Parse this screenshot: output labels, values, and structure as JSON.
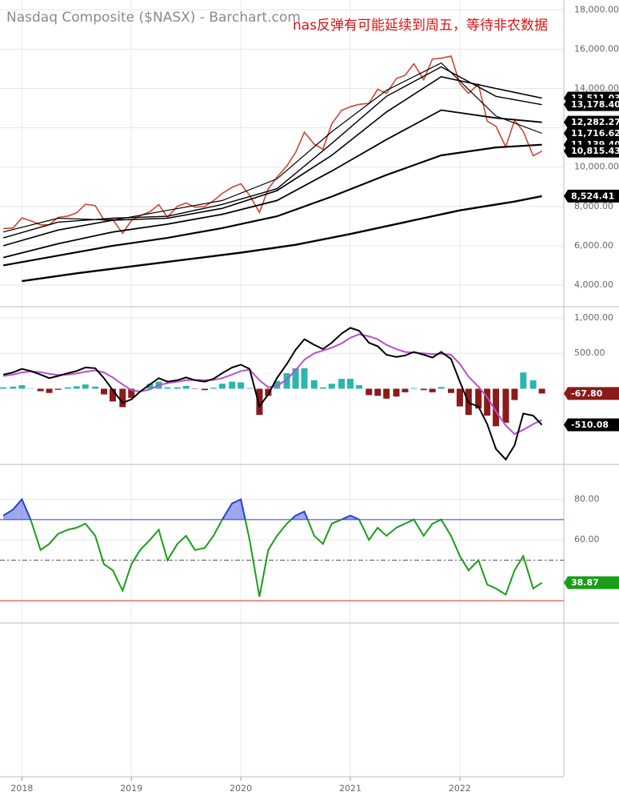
{
  "x_axis": {
    "xlim": [
      2017.8,
      2022.95
    ],
    "xticks": [
      2018,
      2019,
      2020,
      2021,
      2022
    ]
  },
  "chart_data": [
    {
      "type": "price",
      "title": "Nasdaq Composite ($NASX) - Barchart.com",
      "annotation": "nas反弹有可能延续到周五，等待非农数据",
      "ylim": [
        2900,
        18500
      ],
      "yticks": [
        {
          "value": 4000,
          "label": "4,000.00"
        },
        {
          "value": 6000,
          "label": "6,000.00"
        },
        {
          "value": 8000,
          "label": "8,000.00"
        },
        {
          "value": 10000,
          "label": "10,000.00"
        },
        {
          "value": 12000,
          "label": "12,000.00"
        },
        {
          "value": 14000,
          "label": "14,000.00"
        },
        {
          "value": 16000,
          "label": "16,000.00"
        },
        {
          "value": 18000,
          "label": "18,000.00"
        }
      ],
      "grid": true,
      "x": [
        2017.83,
        2017.92,
        2018.0,
        2018.08,
        2018.17,
        2018.25,
        2018.33,
        2018.42,
        2018.5,
        2018.58,
        2018.67,
        2018.75,
        2018.83,
        2018.92,
        2019.0,
        2019.08,
        2019.17,
        2019.25,
        2019.33,
        2019.42,
        2019.5,
        2019.58,
        2019.67,
        2019.75,
        2019.83,
        2019.92,
        2020.0,
        2020.08,
        2020.17,
        2020.25,
        2020.33,
        2020.42,
        2020.5,
        2020.58,
        2020.67,
        2020.75,
        2020.83,
        2020.92,
        2021.0,
        2021.08,
        2021.17,
        2021.25,
        2021.33,
        2021.42,
        2021.5,
        2021.58,
        2021.67,
        2021.75,
        2021.83,
        2021.92,
        2022.0,
        2022.08,
        2022.17,
        2022.25,
        2022.33,
        2022.42,
        2022.5,
        2022.58,
        2022.67,
        2022.75
      ],
      "series": [
        {
          "color": "#d2452f",
          "values": [
            6874,
            6903,
            7411,
            7273,
            7063,
            7066,
            7442,
            7510,
            7672,
            8110,
            8046,
            7306,
            7331,
            6635,
            7282,
            7533,
            7729,
            8095,
            7453,
            8006,
            8175,
            7963,
            7999,
            8292,
            8665,
            8973,
            9151,
            8567,
            7700,
            8890,
            9490,
            10059,
            10745,
            11775,
            11168,
            10912,
            12199,
            12888,
            13071,
            13192,
            13247,
            13962,
            13749,
            14504,
            14673,
            15259,
            14449,
            15498,
            15538,
            15645,
            14240,
            13751,
            14221,
            12335,
            12081,
            11029,
            12391,
            11816,
            10576,
            10815.43
          ]
        }
      ],
      "lines": [
        {
          "color": "#000000",
          "width": 2.4,
          "x": [
            2018.0,
            2018.5,
            2019.0,
            2019.5,
            2020.0,
            2020.5,
            2021.0,
            2021.5,
            2022.0,
            2022.5,
            2022.75
          ],
          "values": [
            4200,
            4600,
            4950,
            5300,
            5650,
            6050,
            6600,
            7200,
            7800,
            8250,
            8524.41
          ]
        },
        {
          "color": "#000000",
          "width": 2.2,
          "x": [
            2017.83,
            2018.33,
            2018.83,
            2019.33,
            2019.83,
            2020.33,
            2020.83,
            2021.33,
            2021.83,
            2022.33,
            2022.75
          ],
          "values": [
            5000,
            5500,
            6000,
            6400,
            6900,
            7500,
            8500,
            9600,
            10600,
            11000,
            11139.4
          ]
        },
        {
          "color": "#000000",
          "width": 1.8,
          "x": [
            2017.83,
            2018.33,
            2018.83,
            2019.33,
            2019.83,
            2020.33,
            2020.83,
            2021.33,
            2021.83,
            2022.33,
            2022.75
          ],
          "values": [
            5400,
            6100,
            6700,
            7100,
            7600,
            8300,
            9800,
            11400,
            12900,
            12500,
            12282.27
          ]
        },
        {
          "color": "#000000",
          "width": 1.6,
          "x": [
            2017.83,
            2018.33,
            2018.83,
            2019.33,
            2019.83,
            2020.33,
            2020.83,
            2021.33,
            2021.83,
            2022.33,
            2022.75
          ],
          "values": [
            6000,
            6800,
            7300,
            7400,
            7900,
            8800,
            10600,
            12800,
            14600,
            14000,
            13511.03
          ]
        },
        {
          "color": "#000000",
          "width": 1.4,
          "x": [
            2017.83,
            2018.33,
            2018.83,
            2019.33,
            2019.83,
            2020.33,
            2020.83,
            2021.33,
            2021.83,
            2022.33,
            2022.75
          ],
          "values": [
            6400,
            7200,
            7400,
            7500,
            8100,
            8900,
            11200,
            13600,
            15100,
            13600,
            13178.4
          ]
        },
        {
          "color": "#000000",
          "width": 1.2,
          "x": [
            2017.83,
            2018.33,
            2018.83,
            2019.33,
            2019.83,
            2020.33,
            2020.83,
            2021.33,
            2021.83,
            2022.33,
            2022.75
          ],
          "values": [
            6700,
            7400,
            7300,
            7800,
            8300,
            9400,
            11800,
            13900,
            15300,
            12600,
            11716.62
          ]
        }
      ],
      "axis_tags": [
        {
          "value": 13511.03,
          "label": "13,511.03",
          "color": "#000000"
        },
        {
          "value": 13178.4,
          "label": "13,178.40",
          "color": "#000000"
        },
        {
          "value": 12282.27,
          "label": "12,282.27",
          "color": "#000000"
        },
        {
          "value": 11716.62,
          "label": "11,716.62",
          "color": "#000000"
        },
        {
          "value": 11139.4,
          "label": "11,139.40",
          "color": "#000000"
        },
        {
          "value": 10815.43,
          "label": "10,815.43",
          "color": "#000000"
        },
        {
          "value": 8524.41,
          "label": "8,524.41",
          "color": "#000000"
        }
      ]
    },
    {
      "type": "macd",
      "ylim": [
        -1070,
        1125
      ],
      "yticks": [
        {
          "value": 500,
          "label": "500.00"
        },
        {
          "value": 1000,
          "label": "1,000.00"
        }
      ],
      "grid": true,
      "x": [
        2017.83,
        2017.92,
        2018.0,
        2018.08,
        2018.17,
        2018.25,
        2018.33,
        2018.42,
        2018.5,
        2018.58,
        2018.67,
        2018.75,
        2018.83,
        2018.92,
        2019.0,
        2019.08,
        2019.17,
        2019.25,
        2019.33,
        2019.42,
        2019.5,
        2019.58,
        2019.67,
        2019.75,
        2019.83,
        2019.92,
        2020.0,
        2020.08,
        2020.17,
        2020.25,
        2020.33,
        2020.42,
        2020.5,
        2020.58,
        2020.67,
        2020.75,
        2020.83,
        2020.92,
        2021.0,
        2021.08,
        2021.17,
        2021.25,
        2021.33,
        2021.42,
        2021.5,
        2021.58,
        2021.67,
        2021.75,
        2021.83,
        2021.92,
        2022.0,
        2022.08,
        2022.17,
        2022.25,
        2022.33,
        2022.42,
        2022.5,
        2022.58,
        2022.67,
        2022.75
      ],
      "histogram": {
        "colors": [
          "#2bb5b0",
          "#8b1a1a"
        ],
        "values": [
          20,
          30,
          50,
          5,
          -35,
          -60,
          -15,
          20,
          35,
          60,
          30,
          -80,
          -180,
          -260,
          -130,
          0,
          70,
          100,
          20,
          20,
          40,
          -5,
          -20,
          15,
          70,
          100,
          90,
          10,
          -370,
          -100,
          110,
          220,
          290,
          290,
          120,
          20,
          70,
          140,
          140,
          50,
          -90,
          -100,
          -140,
          -110,
          -50,
          10,
          -20,
          -50,
          25,
          -60,
          -250,
          -370,
          -280,
          -380,
          -530,
          -480,
          -160,
          230,
          120,
          -67.8
        ]
      },
      "series": [
        {
          "color": "#000000",
          "values": [
            200,
            230,
            280,
            250,
            200,
            150,
            180,
            220,
            250,
            300,
            290,
            150,
            -20,
            -200,
            -150,
            -40,
            60,
            150,
            100,
            120,
            160,
            120,
            100,
            140,
            220,
            300,
            340,
            280,
            -250,
            -80,
            150,
            350,
            550,
            700,
            620,
            560,
            650,
            780,
            860,
            820,
            650,
            600,
            480,
            450,
            470,
            520,
            480,
            440,
            520,
            420,
            100,
            -200,
            -250,
            -500,
            -850,
            -1000,
            -800,
            -350,
            -380,
            -510.08
          ]
        },
        {
          "color": "#b84fd0",
          "values": [
            180,
            200,
            230,
            245,
            235,
            210,
            195,
            200,
            215,
            240,
            260,
            230,
            160,
            60,
            -20,
            -40,
            -10,
            50,
            80,
            100,
            120,
            125,
            120,
            125,
            150,
            200,
            250,
            270,
            120,
            20,
            40,
            130,
            260,
            410,
            500,
            540,
            580,
            640,
            720,
            770,
            740,
            700,
            620,
            560,
            520,
            510,
            500,
            490,
            495,
            480,
            350,
            170,
            30,
            -120,
            -320,
            -520,
            -640,
            -580,
            -500,
            -442.28
          ]
        }
      ],
      "axis_tags": [
        {
          "value": -67.8,
          "label": "-67.80",
          "color": "#8b1a1a"
        },
        {
          "value": -510.08,
          "label": "-510.08",
          "color": "#000000"
        }
      ]
    },
    {
      "type": "rsi",
      "ylim": [
        19,
        96
      ],
      "yticks": [
        {
          "value": 60,
          "label": "60.00"
        },
        {
          "value": 80,
          "label": "80.00"
        }
      ],
      "grid": true,
      "levels": [
        {
          "value": 70,
          "color": "#2a3fd6",
          "dash": false
        },
        {
          "value": 50,
          "color": "#555555",
          "dash": true
        },
        {
          "value": 30,
          "color": "#e02020",
          "dash": false
        }
      ],
      "x": [
        2017.83,
        2017.92,
        2018.0,
        2018.08,
        2018.17,
        2018.25,
        2018.33,
        2018.42,
        2018.5,
        2018.58,
        2018.67,
        2018.75,
        2018.83,
        2018.92,
        2019.0,
        2019.08,
        2019.17,
        2019.25,
        2019.33,
        2019.42,
        2019.5,
        2019.58,
        2019.67,
        2019.75,
        2019.83,
        2019.92,
        2020.0,
        2020.08,
        2020.17,
        2020.25,
        2020.33,
        2020.42,
        2020.5,
        2020.58,
        2020.67,
        2020.75,
        2020.83,
        2020.92,
        2021.0,
        2021.08,
        2021.17,
        2021.25,
        2021.33,
        2021.42,
        2021.5,
        2021.58,
        2021.67,
        2021.75,
        2021.83,
        2021.92,
        2022.0,
        2022.08,
        2022.17,
        2022.25,
        2022.33,
        2022.42,
        2022.5,
        2022.58,
        2022.67,
        2022.75
      ],
      "series": [
        {
          "color": "#1a9e1a",
          "overbought_color": "#2a3fd6",
          "oversold_color": "#e02020",
          "values": [
            72,
            75,
            80,
            70,
            55,
            58,
            63,
            65,
            66,
            68,
            62,
            48,
            45,
            35,
            48,
            55,
            60,
            65,
            50,
            58,
            62,
            55,
            56,
            62,
            70,
            78,
            80,
            60,
            32,
            55,
            62,
            68,
            72,
            74,
            62,
            58,
            68,
            70,
            72,
            70,
            60,
            66,
            62,
            66,
            68,
            70,
            62,
            68,
            70,
            62,
            52,
            45,
            50,
            38,
            36,
            33,
            45,
            52,
            36,
            38.87
          ]
        }
      ],
      "axis_tags": [
        {
          "value": 38.87,
          "label": "38.87",
          "color": "#1a9e1a"
        }
      ]
    }
  ]
}
